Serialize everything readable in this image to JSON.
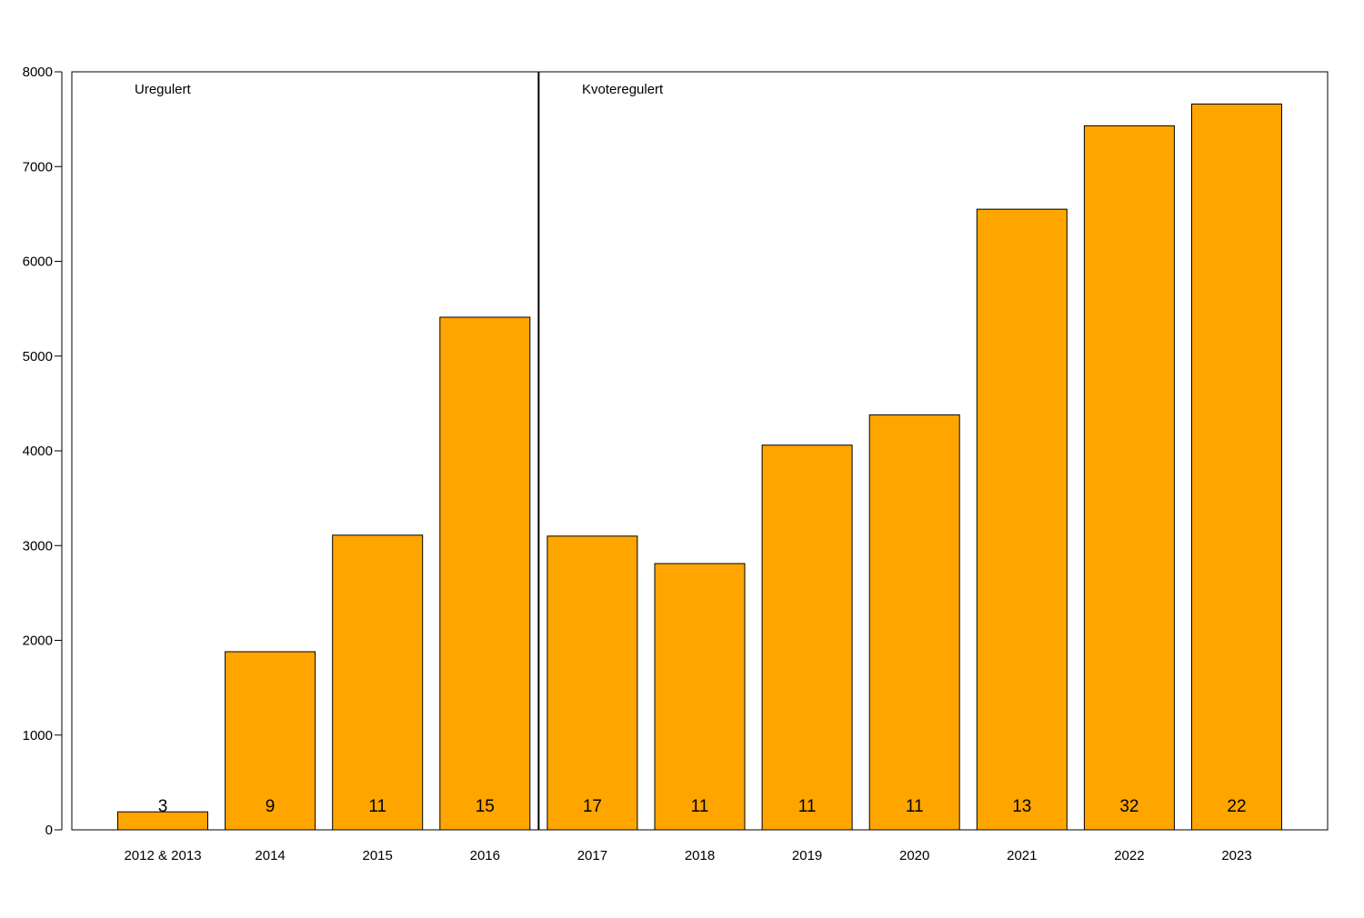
{
  "chart_data": {
    "type": "bar",
    "title": "",
    "xlabel": "",
    "ylabel": "",
    "ylim": [
      0,
      8000
    ],
    "yticks": [
      0,
      1000,
      2000,
      3000,
      4000,
      5000,
      6000,
      7000,
      8000
    ],
    "categories": [
      "2012 & 2013",
      "2014",
      "2015",
      "2016",
      "2017",
      "2018",
      "2019",
      "2020",
      "2021",
      "2022",
      "2023"
    ],
    "values": [
      190,
      1880,
      3110,
      5410,
      3100,
      2810,
      4060,
      4380,
      6550,
      7430,
      7660
    ],
    "bar_labels": [
      "3",
      "9",
      "11",
      "15",
      "17",
      "11",
      "11",
      "11",
      "13",
      "32",
      "22"
    ],
    "bar_color": "#FFA500",
    "divider_after_category": "2016",
    "annotations": {
      "left": "Uregulert",
      "right": "Kvoteregulert"
    },
    "grid": false,
    "legend": "none"
  }
}
